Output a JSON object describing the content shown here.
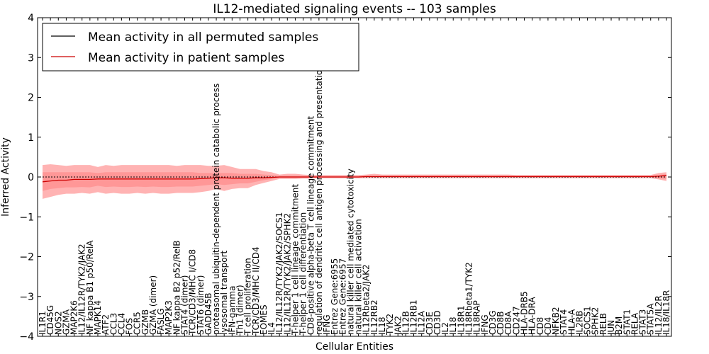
{
  "chart_data": {
    "type": "line",
    "title": "IL12-mediated signaling events -- 103 samples",
    "xlabel": "Cellular Entities",
    "ylabel": "Inferred Activity",
    "ylim": [
      -4,
      4
    ],
    "yticks": [
      -4,
      -3,
      -2,
      -1,
      0,
      1,
      2,
      3,
      4
    ],
    "legend_position": "top-left",
    "categories": [
      "IL1R1",
      "CD45G",
      "NOS2",
      "GZMA",
      "MAP2K6",
      "IL12/IL12R/TYK2/JAK2",
      "NF kappa B1 p50/RelA",
      "MAPK14",
      "ATF2",
      "CCL3",
      "CCL4",
      "FOS",
      "CCR5",
      "GZMB",
      "GZMA (dimer)",
      "FASLG",
      "MAP2K3",
      "NF kappa B2 p52/RelB",
      "STAT4 (dimer)",
      "TCR/CD3/MHC I/CD8",
      "STAT6 (dimer)",
      "GADD45B",
      "proteasomal ubiquitin-dependent protein catabolic process",
      "lysosomal transport",
      "IFN-gamma",
      "Th1 (dimer)",
      "T cell proliferation",
      "TCR/CD3/MHC II/CD4",
      "EOMES",
      "IL4",
      "IL12/IL12R/TYK2/JAK2/SOCS1",
      "IL12/IL12R/TYK2/JAK2/SPHK2",
      "T-helper 1 cell lineage commitment",
      "T-helper 1 cell differentiation",
      "CD8-positive alpha-beta T cell lineage commitment",
      "regulation of dendritic cell antigen processing and presentation",
      "IFNG",
      "Entrez Gene:6955",
      "Entrez Gene:6957",
      "natural killer cell mediated cytotoxicity",
      "natural killer cell activation",
      "IL12Rbeta2/JAK2",
      "IL12RB2",
      "IL18",
      "TYK2",
      "JAK2",
      "IL12B",
      "IL12RB1",
      "IL12A",
      "CD3E",
      "CD3D",
      "IL2",
      "IL18",
      "IL18R1",
      "IL18Rbeta1/TYK2",
      "IL18RAP",
      "IFNG",
      "CD3G",
      "CD8B",
      "CD8A",
      "CD247",
      "HLA-DRB5",
      "HLA-DRA",
      "CD8",
      "CD4",
      "NFKB2",
      "STAT4",
      "HLA-A",
      "IL2RB",
      "SOCS1",
      "SPHK2",
      "RELB",
      "JUN",
      "B2M",
      "STAT1",
      "RELA",
      "STAT3",
      "STAT5A",
      "IL12/IL2R",
      "IL18/IL18R"
    ],
    "series": [
      {
        "name": "Mean activity in all permuted samples",
        "color": "#000000",
        "values": [
          0,
          0,
          0,
          0,
          0,
          0,
          0,
          0,
          0,
          0,
          0,
          0,
          0,
          0,
          0,
          0,
          0,
          0,
          0,
          0,
          0,
          0,
          0,
          0,
          0,
          0,
          0,
          0,
          0,
          0,
          0,
          0,
          0,
          0,
          0,
          0,
          0,
          0,
          0,
          0,
          0,
          0,
          0,
          0,
          0,
          0,
          0,
          0,
          0,
          0,
          0,
          0,
          0,
          0,
          0,
          0,
          0,
          0,
          0,
          0,
          0,
          0,
          0,
          0,
          0,
          0,
          0,
          0,
          0,
          0,
          0,
          0,
          0,
          0,
          0,
          0,
          0,
          0,
          0,
          0
        ]
      },
      {
        "name": "Mean activity in patient samples",
        "color": "#cc0000",
        "values": [
          -0.12,
          -0.1,
          -0.08,
          -0.08,
          -0.06,
          -0.06,
          -0.06,
          -0.05,
          -0.05,
          -0.05,
          -0.05,
          -0.05,
          -0.05,
          -0.05,
          -0.05,
          -0.05,
          -0.05,
          -0.05,
          -0.05,
          -0.05,
          -0.04,
          -0.03,
          -0.02,
          -0.02,
          -0.03,
          -0.03,
          -0.03,
          -0.02,
          -0.02,
          -0.01,
          0,
          0,
          0,
          0,
          0,
          0,
          0,
          0,
          0,
          0,
          0,
          0.01,
          0.01,
          0.01,
          0.01,
          0.01,
          0.01,
          0.01,
          0.01,
          0.01,
          0.01,
          0.01,
          0.01,
          0.01,
          0.01,
          0.01,
          0.01,
          0.01,
          0.01,
          0.01,
          0.01,
          0.01,
          0.01,
          0.01,
          0.01,
          0.01,
          0.01,
          0.01,
          0.01,
          0.01,
          0.01,
          0.01,
          0.01,
          0.01,
          0.01,
          0.01,
          0.01,
          0.01,
          0.02,
          0.04
        ]
      }
    ],
    "band_outer_upper": [
      0.3,
      0.32,
      0.3,
      0.28,
      0.3,
      0.3,
      0.3,
      0.25,
      0.3,
      0.28,
      0.3,
      0.3,
      0.3,
      0.3,
      0.3,
      0.3,
      0.3,
      0.28,
      0.3,
      0.3,
      0.3,
      0.28,
      0.28,
      0.3,
      0.25,
      0.2,
      0.2,
      0.2,
      0.15,
      0.12,
      0.06,
      0.08,
      0.08,
      0.06,
      0.05,
      0.05,
      0.05,
      0.05,
      0.05,
      0.05,
      0.05,
      0.06,
      0.08,
      0.06,
      0.06,
      0.06,
      0.06,
      0.06,
      0.06,
      0.06,
      0.06,
      0.06,
      0.06,
      0.06,
      0.06,
      0.06,
      0.06,
      0.06,
      0.06,
      0.06,
      0.05,
      0.05,
      0.05,
      0.05,
      0.05,
      0.05,
      0.05,
      0.05,
      0.05,
      0.05,
      0.05,
      0.05,
      0.05,
      0.05,
      0.05,
      0.05,
      0.05,
      0.05,
      0.1,
      0.12
    ],
    "band_outer_lower": [
      -0.55,
      -0.5,
      -0.45,
      -0.42,
      -0.42,
      -0.4,
      -0.42,
      -0.38,
      -0.42,
      -0.4,
      -0.42,
      -0.42,
      -0.4,
      -0.42,
      -0.4,
      -0.42,
      -0.42,
      -0.4,
      -0.4,
      -0.4,
      -0.38,
      -0.35,
      -0.3,
      -0.35,
      -0.3,
      -0.28,
      -0.28,
      -0.2,
      -0.15,
      -0.1,
      -0.05,
      -0.05,
      -0.05,
      -0.04,
      -0.04,
      -0.03,
      -0.03,
      -0.03,
      -0.03,
      -0.03,
      -0.03,
      -0.03,
      -0.03,
      -0.03,
      -0.03,
      -0.03,
      -0.03,
      -0.03,
      -0.03,
      -0.03,
      -0.03,
      -0.03,
      -0.03,
      -0.03,
      -0.03,
      -0.03,
      -0.03,
      -0.03,
      -0.03,
      -0.03,
      -0.03,
      -0.03,
      -0.03,
      -0.03,
      -0.03,
      -0.03,
      -0.03,
      -0.03,
      -0.03,
      -0.03,
      -0.03,
      -0.03,
      -0.03,
      -0.03,
      -0.03,
      -0.03,
      -0.03,
      -0.03,
      -0.06,
      -0.1
    ],
    "band_inner_upper": [
      0.12,
      0.12,
      0.12,
      0.12,
      0.12,
      0.12,
      0.12,
      0.1,
      0.12,
      0.12,
      0.12,
      0.12,
      0.12,
      0.12,
      0.12,
      0.12,
      0.12,
      0.12,
      0.12,
      0.12,
      0.1,
      0.1,
      0.1,
      0.1,
      0.1,
      0.08,
      0.08,
      0.08,
      0.06,
      0.05,
      0.03,
      0.03,
      0.03,
      0.03,
      0.02,
      0.02,
      0.02,
      0.02,
      0.02,
      0.02,
      0.02,
      0.03,
      0.03,
      0.03,
      0.03,
      0.03,
      0.03,
      0.03,
      0.03,
      0.03,
      0.03,
      0.03,
      0.03,
      0.03,
      0.03,
      0.03,
      0.03,
      0.03,
      0.03,
      0.03,
      0.03,
      0.03,
      0.03,
      0.03,
      0.03,
      0.03,
      0.03,
      0.03,
      0.03,
      0.03,
      0.03,
      0.03,
      0.03,
      0.03,
      0.03,
      0.03,
      0.03,
      0.03,
      0.05,
      0.07
    ],
    "band_inner_lower": [
      -0.35,
      -0.3,
      -0.28,
      -0.26,
      -0.26,
      -0.25,
      -0.26,
      -0.22,
      -0.25,
      -0.24,
      -0.25,
      -0.25,
      -0.24,
      -0.25,
      -0.24,
      -0.25,
      -0.25,
      -0.24,
      -0.24,
      -0.24,
      -0.22,
      -0.2,
      -0.18,
      -0.2,
      -0.18,
      -0.16,
      -0.16,
      -0.12,
      -0.08,
      -0.05,
      -0.02,
      -0.02,
      -0.02,
      -0.02,
      -0.02,
      -0.01,
      -0.01,
      -0.01,
      -0.01,
      -0.01,
      -0.01,
      -0.01,
      -0.01,
      -0.01,
      -0.01,
      -0.01,
      -0.01,
      -0.01,
      -0.01,
      -0.01,
      -0.01,
      -0.01,
      -0.01,
      -0.01,
      -0.01,
      -0.01,
      -0.01,
      -0.01,
      -0.01,
      -0.01,
      -0.01,
      -0.01,
      -0.01,
      -0.01,
      -0.01,
      -0.01,
      -0.01,
      -0.01,
      -0.01,
      -0.01,
      -0.01,
      -0.01,
      -0.01,
      -0.01,
      -0.01,
      -0.01,
      -0.01,
      -0.01,
      -0.03,
      -0.05
    ],
    "band_color": "#ff8080"
  }
}
